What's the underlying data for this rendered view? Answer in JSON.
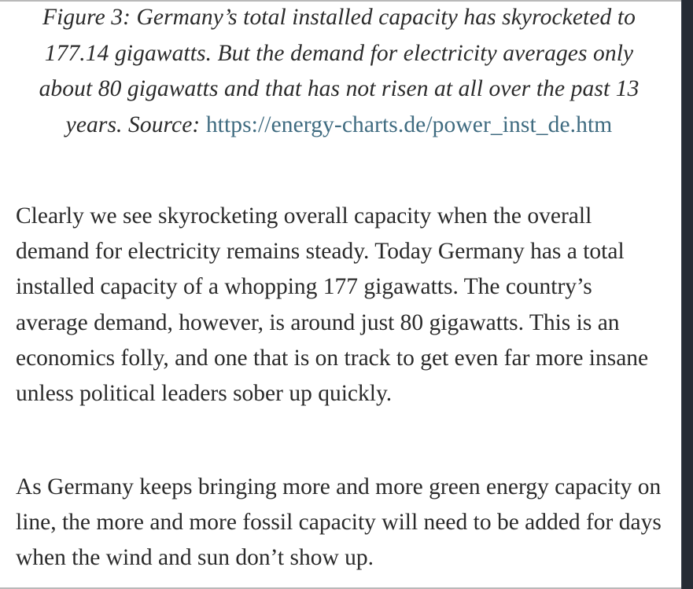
{
  "figure": {
    "caption_text": "Figure 3: Germany’s total installed capacity has skyrocketed to 177.14 gigawatts. But the demand for electricity averages only about 80 gigawatts and that has not risen at all over the past 13 years. Source: ",
    "source_link_text": "https://energy-charts.de/power_inst_de.htm"
  },
  "article": {
    "paragraphs": [
      "Clearly we see skyrocketing overall capacity when the overall demand for electricity remains steady. Today Germany has a total installed capacity of a whopping 177 gigawatts. The country’s average demand, however, is around just 80 gigawatts. This is an economics folly, and one that is on track to get even far more insane unless political leaders sober up quickly.",
      "As Germany keeps bringing more and more green energy capacity on line, the more and more fossil capacity will need to be added for days when the wind and sun don’t show up."
    ]
  },
  "colors": {
    "text": "#2a2a2a",
    "link": "#3f6b80",
    "background": "#ffffff",
    "right_strip": "#262c35"
  }
}
